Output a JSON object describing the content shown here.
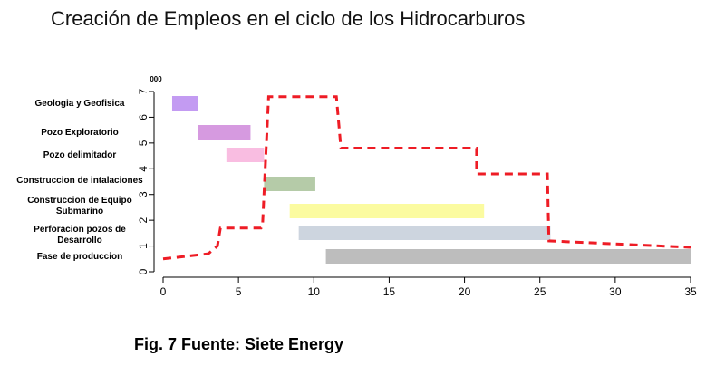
{
  "title": "Creación de Empleos en el ciclo de los Hidrocarburos",
  "caption": "Fig. 7 Fuente: Siete Energy",
  "chart_data": {
    "type": "line",
    "y_unit_label": "000",
    "xlim": [
      0,
      35
    ],
    "ylim": [
      0,
      7
    ],
    "x_ticks": [
      0,
      5,
      10,
      15,
      20,
      25,
      30,
      35
    ],
    "y_ticks": [
      0,
      1,
      2,
      3,
      4,
      5,
      6,
      7
    ],
    "series": [
      {
        "color": "#ee1c25",
        "style": "dashed",
        "x": [
          0,
          3,
          3.6,
          3.8,
          6.5,
          6.6,
          6.6,
          7,
          11.5,
          11.8,
          20.8,
          20.8,
          25.5,
          25.6,
          35
        ],
        "y": [
          0.5,
          0.7,
          1.0,
          1.7,
          1.7,
          1.8,
          1.8,
          6.8,
          6.8,
          4.8,
          4.8,
          3.8,
          3.8,
          1.2,
          0.95
        ]
      }
    ],
    "gantt": [
      {
        "label": "Geologia y Geofisica",
        "start": 0.6,
        "end": 2.3,
        "color": "#c39bf2"
      },
      {
        "label": "Pozo Exploratorio",
        "start": 2.3,
        "end": 5.8,
        "color": "#d69ae0"
      },
      {
        "label": "Pozo delimitador",
        "start": 4.2,
        "end": 6.7,
        "color": "#f9bde1"
      },
      {
        "label": "Construccion de intalaciones",
        "start": 6.7,
        "end": 10.1,
        "color": "#b5cba8"
      },
      {
        "label": "Construccion de Equipo\nSubmarino",
        "start": 8.4,
        "end": 21.3,
        "color": "#fbfba0"
      },
      {
        "label": "Perforacion pozos de\nDesarrollo",
        "start": 9,
        "end": 25.7,
        "color": "#cdd5df"
      },
      {
        "label": "Fase de produccion",
        "start": 10.8,
        "end": 35,
        "color": "#bdbdbd"
      }
    ]
  }
}
